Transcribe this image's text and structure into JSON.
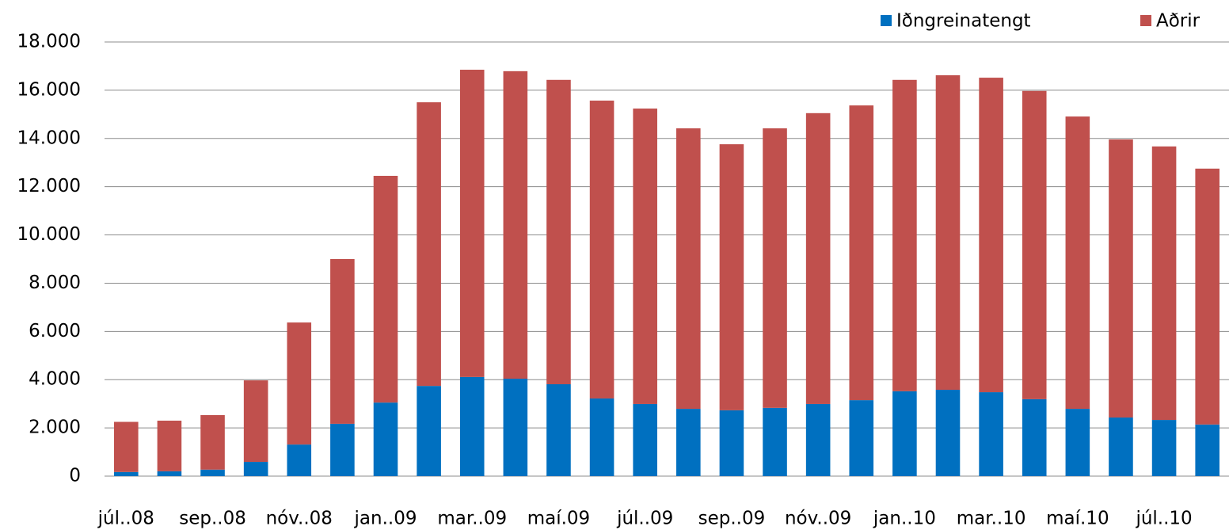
{
  "chart_data": {
    "type": "stacked_bar",
    "categories": [
      "júl..08",
      null,
      "sep..08",
      null,
      "nóv..08",
      null,
      "jan..09",
      null,
      "mar..09",
      null,
      "maí.09",
      null,
      "júl..09",
      null,
      "sep..09",
      null,
      "nóv..09",
      null,
      "jan..10",
      null,
      "mar..10",
      null,
      "maí.10",
      null,
      "júl..10",
      null
    ],
    "series": [
      {
        "name": "Iðngreinatengt",
        "color": "#0070c0",
        "values": [
          170,
          200,
          270,
          590,
          1310,
          2170,
          3050,
          3740,
          4110,
          4040,
          3810,
          3220,
          2990,
          2790,
          2730,
          2830,
          2990,
          3150,
          3520,
          3580,
          3480,
          3190,
          2790,
          2430,
          2330,
          2140
        ]
      },
      {
        "name": "Aðrir",
        "color": "#c0504d",
        "values": [
          2080,
          2100,
          2260,
          3380,
          5060,
          6830,
          9400,
          11760,
          12740,
          12750,
          12620,
          12350,
          12250,
          11630,
          11030,
          11590,
          12060,
          12220,
          12910,
          13040,
          13040,
          12780,
          12120,
          11530,
          11340,
          10610
        ]
      }
    ],
    "ylim": [
      0,
      18000
    ],
    "yticks": [
      0,
      {
        "value": 2000,
        "label": "2.000"
      },
      {
        "value": 4000,
        "label": "4.000"
      },
      {
        "value": 6000,
        "label": "6.000"
      },
      {
        "value": 8000,
        "label": "8.000"
      },
      {
        "value": 10000,
        "label": "10.000"
      },
      {
        "value": 12000,
        "label": "12.000"
      },
      {
        "value": 14000,
        "label": "14.000"
      },
      {
        "value": 16000,
        "label": "16.000"
      },
      {
        "value": 18000,
        "label": "18.000"
      }
    ],
    "grid": true,
    "legend": "top-right"
  }
}
